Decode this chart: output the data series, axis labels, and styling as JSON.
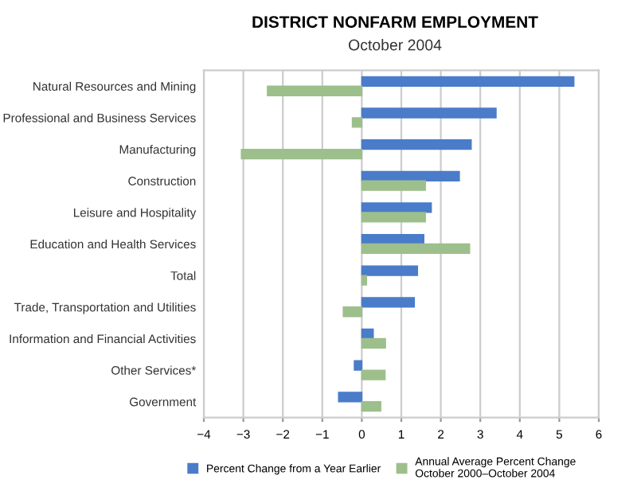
{
  "chart_data": {
    "type": "bar",
    "orientation": "horizontal",
    "title": "DISTRICT NONFARM EMPLOYMENT",
    "subtitle": "October 2004",
    "categories": [
      "Natural Resources and Mining",
      "Professional and Business Services",
      "Manufacturing",
      "Construction",
      "Leisure and Hospitality",
      "Education and Health Services",
      "Total",
      "Trade, Transportation and Utilities",
      "Information and Financial Activities",
      "Other Services*",
      "Government"
    ],
    "series": [
      {
        "name": "Percent Change from a Year Earlier",
        "color": "#4a7cc9",
        "values": [
          5.37,
          3.4,
          2.77,
          2.47,
          1.76,
          1.57,
          1.41,
          1.33,
          0.29,
          -0.19,
          -0.59
        ]
      },
      {
        "name": "Annual Average Percent Change\nOctober 2000–October 2004",
        "color": "#9dbf8c",
        "values": [
          -2.39,
          -0.24,
          -3.05,
          1.61,
          1.61,
          2.73,
          0.12,
          -0.47,
          0.6,
          0.59,
          0.48
        ]
      }
    ],
    "xlim": [
      -4,
      6
    ],
    "xticks": [
      {
        "value": -4,
        "label": "−4"
      },
      {
        "value": -3,
        "label": "−3"
      },
      {
        "value": -2,
        "label": "−2"
      },
      {
        "value": -1,
        "label": "−1"
      },
      0,
      1,
      2,
      3,
      4,
      5,
      6
    ],
    "grid": "x",
    "legend": "bottom"
  }
}
